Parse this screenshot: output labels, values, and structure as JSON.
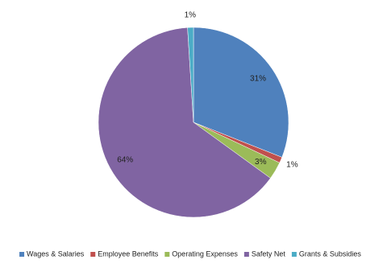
{
  "chart_data": {
    "type": "pie",
    "categories": [
      "Wages & Salaries",
      "Employee Benefits",
      "Operating Expenses",
      "Safety Net",
      "Grants & Subsidies"
    ],
    "values": [
      31,
      1,
      3,
      64,
      1
    ],
    "value_labels": [
      "31%",
      "1%",
      "3%",
      "64%",
      "1%"
    ],
    "colors": [
      "#4f81bd",
      "#c0504d",
      "#9bbb59",
      "#8064a2",
      "#4bacc6"
    ],
    "legend": "bottom"
  }
}
